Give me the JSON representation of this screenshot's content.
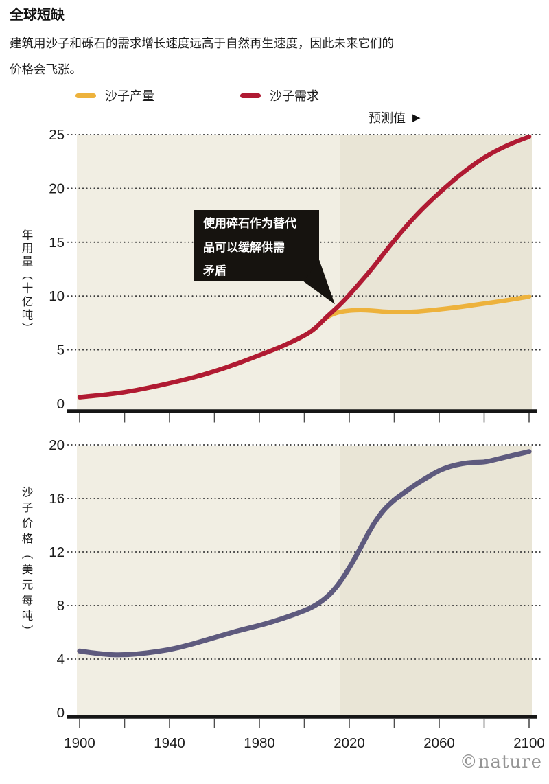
{
  "title": "全球短缺",
  "subtitle_lines": [
    "建筑用沙子和砾石的需求增长速度远高于自然再生速度，因此未来它们的",
    "价格会飞涨。"
  ],
  "legend": {
    "items": [
      {
        "label": "沙子产量",
        "color": "#edb23c"
      },
      {
        "label": "沙子需求",
        "color": "#b01a33"
      }
    ]
  },
  "forecast": {
    "label": "预测值",
    "arrow": "▶"
  },
  "annotation": {
    "text": "使用碎石作为替代品可以缓解供需矛盾",
    "lines": [
      "使用碎石作为替代",
      "品可以缓解供需",
      "矛盾"
    ]
  },
  "credit": "©nature",
  "colors": {
    "history_bg": "#f1eee3",
    "forecast_bg": "#e9e5d6",
    "grid": "#3c3c3c",
    "axis": "#161616",
    "tick": "#4d4d4d",
    "tick_label": "#1b1b1b",
    "production": "#edb23c",
    "demand": "#b01a33",
    "price": "#5e5a7e",
    "annotation_bg": "#16130f"
  },
  "chart_data": [
    {
      "type": "line",
      "title": "年用量",
      "xlabel": "",
      "ylabel": "年用量（十亿吨）",
      "xlim": [
        1900,
        2100
      ],
      "ylim": [
        0,
        25
      ],
      "yticks": [
        0,
        5,
        10,
        15,
        20,
        25
      ],
      "xticks_minor": [
        1900,
        1920,
        1940,
        1960,
        1980,
        2000,
        2020,
        2040,
        2060,
        2080,
        2100
      ],
      "xtick_labels": [],
      "grid": "dotted",
      "forecast_start": 2016,
      "legend_position": "top",
      "series": [
        {
          "id": "production-line",
          "name": "沙子产量",
          "color": "#edb23c",
          "x": [
            1900,
            1910,
            1920,
            1930,
            1940,
            1950,
            1960,
            1970,
            1980,
            1990,
            2000,
            2005,
            2010,
            2015,
            2020,
            2025,
            2030,
            2035,
            2040,
            2045,
            2050,
            2055,
            2060,
            2070,
            2080,
            2090,
            2100
          ],
          "y": [
            0.6,
            0.8,
            1.05,
            1.45,
            1.9,
            2.4,
            3.0,
            3.7,
            4.5,
            5.3,
            6.3,
            7.0,
            8.1,
            8.5,
            8.65,
            8.7,
            8.65,
            8.55,
            8.5,
            8.5,
            8.55,
            8.65,
            8.75,
            9.0,
            9.3,
            9.6,
            9.95
          ]
        },
        {
          "id": "demand-line",
          "name": "沙子需求",
          "color": "#b01a33",
          "x": [
            1900,
            1910,
            1920,
            1930,
            1940,
            1950,
            1960,
            1970,
            1980,
            1990,
            2000,
            2005,
            2010,
            2015,
            2020,
            2025,
            2030,
            2040,
            2050,
            2060,
            2070,
            2080,
            2090,
            2100
          ],
          "y": [
            0.6,
            0.8,
            1.05,
            1.45,
            1.9,
            2.4,
            3.0,
            3.7,
            4.5,
            5.3,
            6.3,
            7.0,
            8.1,
            9.0,
            10.1,
            11.3,
            12.5,
            15.2,
            17.6,
            19.6,
            21.4,
            22.9,
            24.0,
            24.8
          ]
        }
      ]
    },
    {
      "type": "line",
      "title": "沙子价格",
      "xlabel": "",
      "ylabel": "沙子价格（美元每吨）",
      "xlim": [
        1900,
        2100
      ],
      "ylim": [
        0,
        20
      ],
      "yticks": [
        0,
        4,
        8,
        12,
        16,
        20
      ],
      "xticks_minor": [
        1900,
        1920,
        1940,
        1960,
        1980,
        2000,
        2020,
        2040,
        2060,
        2080,
        2100
      ],
      "xtick_labels": [
        1900,
        1940,
        1980,
        2020,
        2060,
        2100
      ],
      "grid": "dotted",
      "forecast_start": 2016,
      "legend_position": "none",
      "series": [
        {
          "id": "price-line",
          "name": "沙子价格",
          "color": "#5e5a7e",
          "x": [
            1900,
            1910,
            1920,
            1930,
            1940,
            1950,
            1960,
            1970,
            1980,
            1990,
            2000,
            2005,
            2010,
            2015,
            2020,
            2025,
            2030,
            2035,
            2040,
            2045,
            2050,
            2055,
            2060,
            2065,
            2070,
            2075,
            2080,
            2085,
            2090,
            2095,
            2100
          ],
          "y": [
            4.6,
            4.35,
            4.3,
            4.45,
            4.7,
            5.1,
            5.6,
            6.1,
            6.5,
            7.0,
            7.6,
            8.0,
            8.6,
            9.5,
            10.8,
            12.3,
            13.9,
            15.1,
            15.9,
            16.5,
            17.1,
            17.6,
            18.1,
            18.4,
            18.6,
            18.7,
            18.7,
            18.9,
            19.1,
            19.3,
            19.5
          ]
        }
      ]
    }
  ]
}
